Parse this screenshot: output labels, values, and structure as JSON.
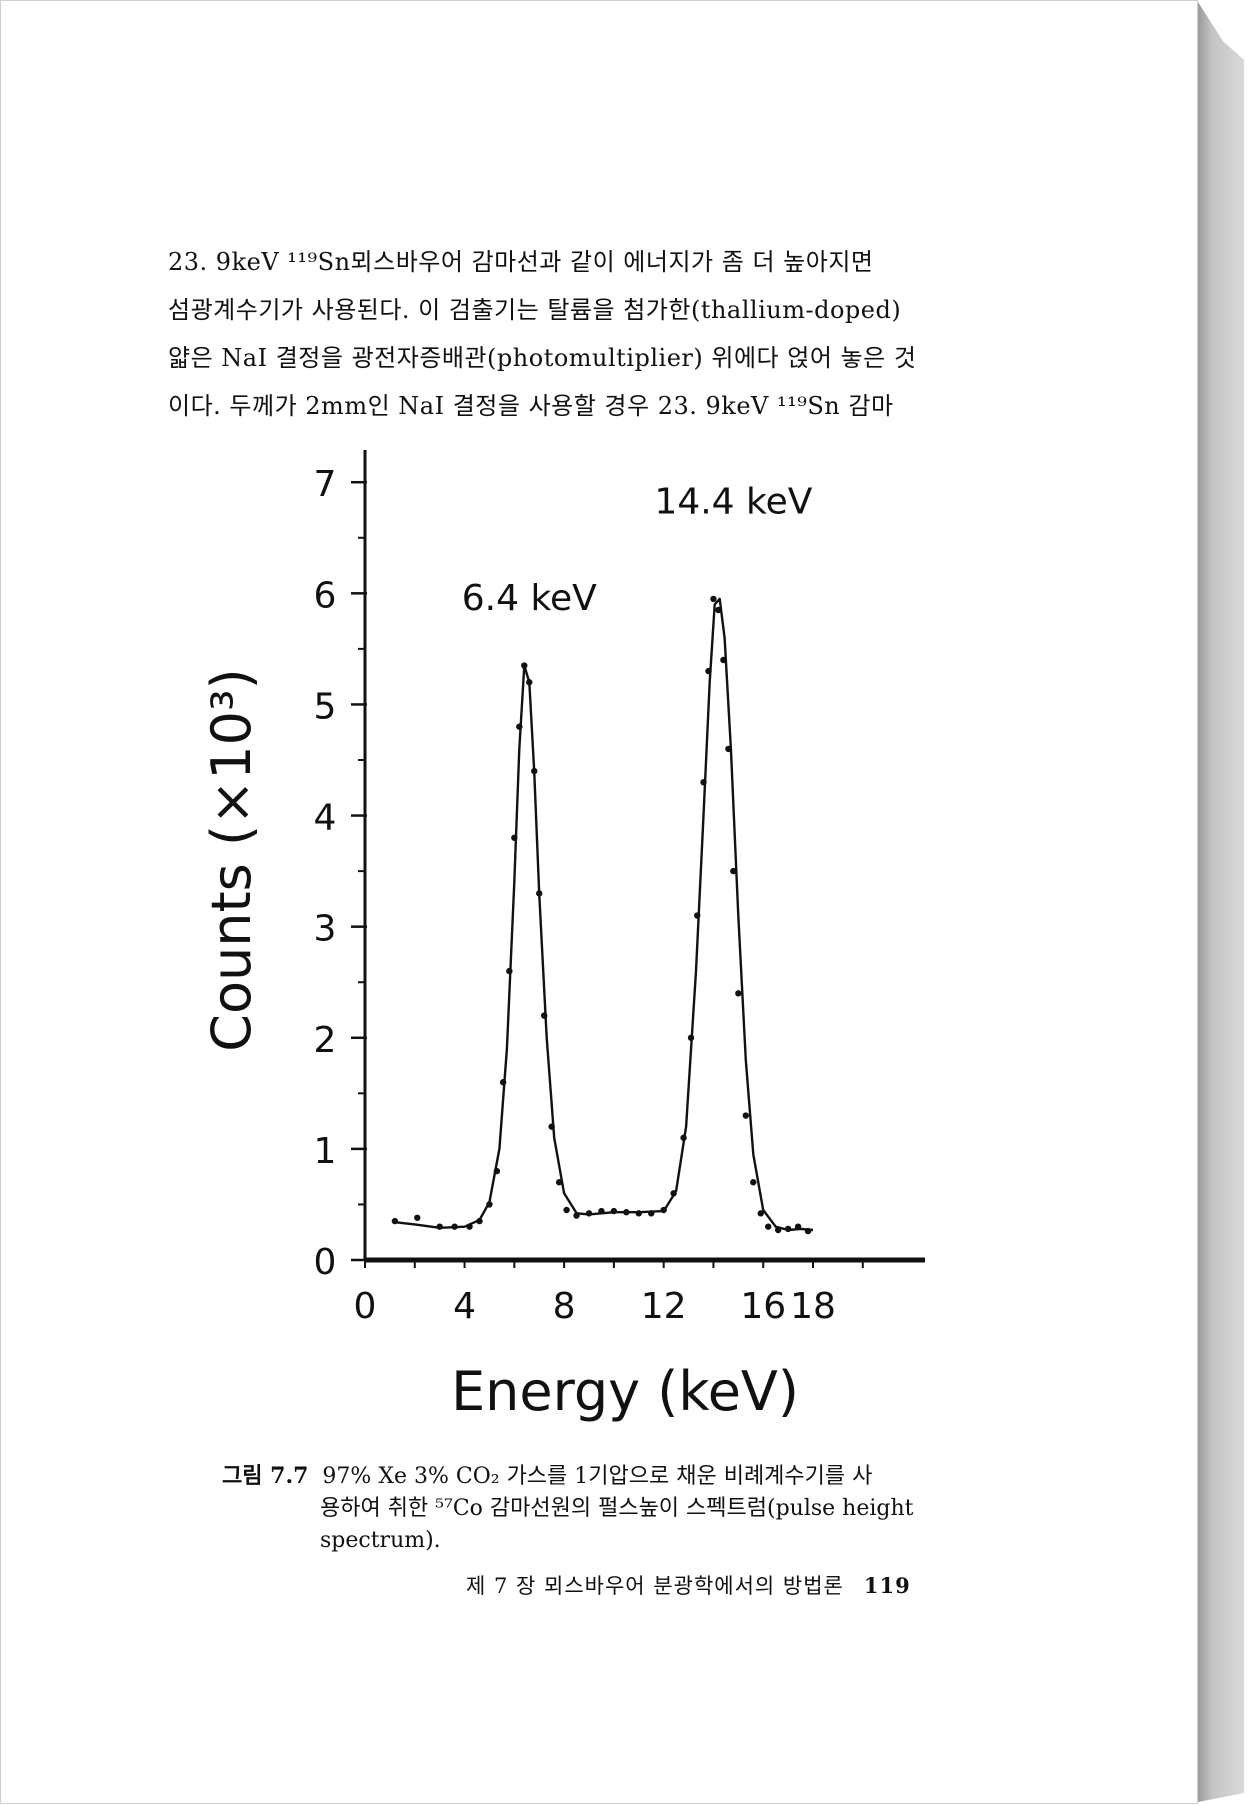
{
  "paragraph": {
    "lines": [
      "23. 9keV ¹¹⁹Sn뫼스바우어 감마선과 같이 에너지가 좀 더 높아지면",
      "섬광계수기가 사용된다. 이 검출기는 탈륨을 첨가한(thallium-doped)",
      "얇은 NaI 결정을 광전자증배관(photomultiplier) 위에다 얹어 놓은 것",
      "이다. 두께가 2mm인 NaI 결정을 사용할 경우 23. 9keV ¹¹⁹Sn 감마"
    ]
  },
  "chart_data": {
    "type": "line",
    "xlabel": "Energy (keV)",
    "ylabel": "Counts (×10³)",
    "x_ticks": [
      "0",
      "4",
      "8",
      "12",
      "16",
      "18"
    ],
    "y_ticks": [
      "0",
      "1",
      "2",
      "3",
      "4",
      "5",
      "6",
      "7"
    ],
    "xlim": [
      0,
      22.5
    ],
    "ylim": [
      0,
      7.2
    ],
    "annotations": [
      {
        "text": "6.4 keV",
        "x": 6.4,
        "y": 5.4
      },
      {
        "text": "14.4 keV",
        "x": 14.4,
        "y": 6.0
      }
    ],
    "series": [
      {
        "style": "points",
        "x": [
          1.2,
          2.1,
          3.0,
          3.6,
          4.2,
          4.6,
          5.0,
          5.3,
          5.55,
          5.8,
          6.0,
          6.2,
          6.4,
          6.6,
          6.8,
          7.0,
          7.2,
          7.5,
          7.8,
          8.1,
          8.5,
          9.0,
          9.5,
          10.0,
          10.5,
          11.0,
          11.5,
          12.0,
          12.4,
          12.8,
          13.1,
          13.35,
          13.6,
          13.8,
          14.0,
          14.2,
          14.4,
          14.6,
          14.8,
          15.0,
          15.3,
          15.6,
          15.9,
          16.2,
          16.6,
          17.0,
          17.4,
          17.8
        ],
        "y": [
          0.35,
          0.38,
          0.3,
          0.3,
          0.3,
          0.35,
          0.5,
          0.8,
          1.6,
          2.6,
          3.8,
          4.8,
          5.35,
          5.2,
          4.4,
          3.3,
          2.2,
          1.2,
          0.7,
          0.45,
          0.4,
          0.42,
          0.44,
          0.44,
          0.43,
          0.42,
          0.42,
          0.45,
          0.6,
          1.1,
          2.0,
          3.1,
          4.3,
          5.3,
          5.95,
          5.85,
          5.4,
          4.6,
          3.5,
          2.4,
          1.3,
          0.7,
          0.42,
          0.3,
          0.27,
          0.28,
          0.3,
          0.26
        ]
      },
      {
        "style": "fit-line",
        "x": [
          1.2,
          2.0,
          3.0,
          4.0,
          4.6,
          5.0,
          5.4,
          5.7,
          6.0,
          6.2,
          6.4,
          6.6,
          6.8,
          7.0,
          7.3,
          7.6,
          8.0,
          8.5,
          9.0,
          10.0,
          11.0,
          12.0,
          12.5,
          12.9,
          13.3,
          13.6,
          13.85,
          14.05,
          14.25,
          14.45,
          14.7,
          15.0,
          15.3,
          15.6,
          16.0,
          16.5,
          17.0,
          17.5,
          18.0
        ],
        "y": [
          0.34,
          0.32,
          0.29,
          0.3,
          0.36,
          0.52,
          1.0,
          1.9,
          3.4,
          4.6,
          5.35,
          5.2,
          4.4,
          3.3,
          2.0,
          1.1,
          0.6,
          0.42,
          0.41,
          0.43,
          0.43,
          0.44,
          0.62,
          1.2,
          2.6,
          4.0,
          5.2,
          5.9,
          5.95,
          5.6,
          4.6,
          3.1,
          1.8,
          0.95,
          0.45,
          0.3,
          0.27,
          0.28,
          0.27
        ]
      }
    ]
  },
  "caption": {
    "label": "그림 7.7",
    "first_line": "97% Xe 3% CO₂ 가스를 1기압으로 채운 비례계수기를 사",
    "rest": "용하여 취한 ⁵⁷Co 감마선원의 펄스높이 스펙트럼(pulse height spectrum)."
  },
  "footer": {
    "chapter": "제 7 장 뫼스바우어 분광학에서의 방법론",
    "page_number": "119"
  }
}
